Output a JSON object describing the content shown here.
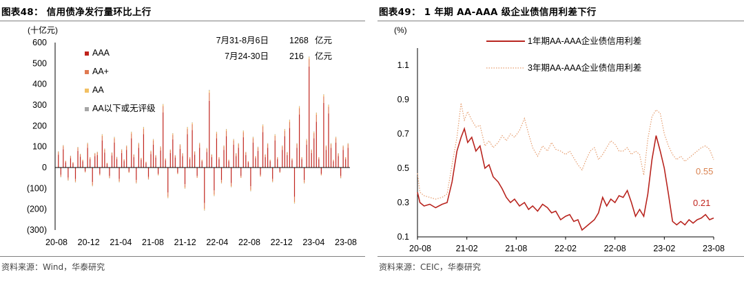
{
  "left": {
    "title": "图表48： 信用债净发行量环比上行",
    "source": "资料来源：Wind，华泰研究",
    "annotations": [
      {
        "label": "7月31-8月6日",
        "value": "1268",
        "unit": "亿元"
      },
      {
        "label": "7月24-30日",
        "value": "216",
        "unit": "亿元"
      }
    ]
  },
  "right": {
    "title": "图表49： 1 年期 AA-AAA 级企业债信用利差下行",
    "source": "资料来源：CEIC，华泰研究",
    "end_labels": {
      "series1": "0.21",
      "series2": "0.55"
    }
  },
  "colors": {
    "aaa": "#c0221b",
    "aa_plus": "#e07a52",
    "aa": "#f2c063",
    "below": "#a6a6a6",
    "line1": "#b8231d",
    "line2": "#e59a6a"
  },
  "chart_data": [
    {
      "type": "bar",
      "stacked": true,
      "ylabel": "(十亿元)",
      "ylim": [
        -300,
        600
      ],
      "yticks": [
        "(300)",
        "(200)",
        "(100)",
        "0",
        "100",
        "200",
        "300",
        "400",
        "500",
        "600"
      ],
      "xticks": [
        "20-08",
        "20-12",
        "21-04",
        "21-08",
        "21-12",
        "22-04",
        "22-08",
        "22-12",
        "23-04",
        "23-08"
      ],
      "legend": [
        "AAA",
        "AA+",
        "AA",
        "AA以下或无评级"
      ],
      "legend_position": "top-left",
      "series": [
        {
          "name": "AAA",
          "values": [
            62,
            -35,
            88,
            25,
            -48,
            45,
            20,
            -55,
            80,
            52,
            30,
            -18,
            95,
            40,
            -70,
            55,
            60,
            -30,
            130,
            72,
            18,
            -40,
            58,
            120,
            40,
            -55,
            70,
            32,
            85,
            -20,
            140,
            50,
            -60,
            95,
            38,
            160,
            22,
            -45,
            65,
            110,
            48,
            -30,
            82,
            265,
            35,
            -120,
            70,
            135,
            48,
            -25,
            90,
            55,
            -80,
            160,
            40,
            180,
            62,
            -40,
            95,
            30,
            -170,
            75,
            320,
            50,
            -110,
            140,
            40,
            -60,
            85,
            150,
            30,
            -75,
            110,
            55,
            95,
            -40,
            145,
            60,
            25,
            -90,
            120,
            45,
            80,
            -35,
            170,
            50,
            95,
            30,
            -55,
            130,
            40,
            -20,
            85,
            150,
            60,
            190,
            35,
            -140,
            95,
            255,
            40,
            -60,
            110,
            485,
            70,
            140,
            220,
            40,
            -30,
            310,
            85,
            260,
            95,
            30,
            120,
            55,
            -40,
            85,
            40,
            95
          ]
        },
        {
          "name": "AA+",
          "values": [
            12,
            -8,
            15,
            6,
            -10,
            9,
            5,
            -12,
            14,
            10,
            6,
            -4,
            18,
            8,
            -14,
            11,
            12,
            -6,
            22,
            14,
            4,
            -8,
            11,
            20,
            8,
            -11,
            13,
            6,
            16,
            -4,
            24,
            10,
            -12,
            18,
            7,
            26,
            5,
            -9,
            12,
            20,
            9,
            -6,
            15,
            30,
            7,
            -20,
            13,
            22,
            9,
            -5,
            17,
            10,
            -16,
            26,
            8,
            28,
            12,
            -8,
            18,
            6,
            -28,
            14,
            40,
            10,
            -20,
            24,
            8,
            -12,
            16,
            26,
            6,
            -14,
            20,
            10,
            17,
            -8,
            25,
            11,
            5,
            -18,
            21,
            8,
            15,
            -7,
            28,
            10,
            17,
            6,
            -11,
            22,
            8,
            -4,
            16,
            26,
            11,
            30,
            7,
            -25,
            17,
            30,
            8,
            -12,
            20,
            36,
            13,
            25,
            34,
            8,
            -6,
            32,
            16,
            32,
            17,
            6,
            21,
            10,
            -8,
            16,
            8,
            17
          ]
        },
        {
          "name": "AA",
          "values": [
            3,
            -2,
            4,
            2,
            -3,
            2,
            1,
            -3,
            4,
            3,
            2,
            -1,
            5,
            2,
            -4,
            3,
            3,
            -2,
            6,
            4,
            1,
            -2,
            3,
            5,
            2,
            -3,
            4,
            2,
            4,
            -1,
            6,
            3,
            -3,
            5,
            2,
            7,
            1,
            -2,
            3,
            5,
            2,
            -2,
            4,
            8,
            2,
            -5,
            3,
            6,
            2,
            -1,
            4,
            3,
            -4,
            7,
            2,
            7,
            3,
            -2,
            5,
            2,
            -7,
            4,
            10,
            3,
            -5,
            6,
            2,
            -3,
            4,
            7,
            2,
            -4,
            5,
            3,
            4,
            -2,
            6,
            3,
            1,
            -4,
            5,
            2,
            4,
            -2,
            7,
            3,
            4,
            2,
            -3,
            6,
            2,
            -1,
            4,
            7,
            3,
            8,
            2,
            -6,
            4,
            8,
            2,
            -3,
            5,
            9,
            3,
            6,
            8,
            2,
            -2,
            8,
            4,
            8,
            4,
            2,
            5,
            3,
            -2,
            4,
            2,
            4
          ]
        },
        {
          "name": "AA以下或无评级",
          "values": [
            1,
            -1,
            1,
            0,
            -1,
            1,
            0,
            -1,
            1,
            1,
            0,
            0,
            1,
            0,
            -1,
            1,
            1,
            0,
            2,
            1,
            0,
            -1,
            1,
            2,
            1,
            -1,
            1,
            0,
            1,
            0,
            2,
            1,
            -1,
            1,
            0,
            2,
            0,
            -1,
            1,
            2,
            1,
            0,
            1,
            2,
            0,
            -2,
            1,
            2,
            1,
            0,
            1,
            1,
            -1,
            2,
            0,
            2,
            1,
            0,
            1,
            0,
            -2,
            1,
            3,
            1,
            -2,
            2,
            0,
            -1,
            1,
            2,
            0,
            -1,
            2,
            1,
            1,
            0,
            2,
            1,
            0,
            -1,
            2,
            0,
            1,
            0,
            2,
            1,
            1,
            0,
            -1,
            2,
            0,
            0,
            1,
            2,
            1,
            2,
            0,
            -2,
            1,
            2,
            0,
            -1,
            2,
            3,
            1,
            2,
            2,
            0,
            0,
            2,
            1,
            2,
            1,
            0,
            2,
            1,
            -1,
            1,
            0,
            1
          ]
        }
      ]
    },
    {
      "type": "line",
      "ylabel": "(%)",
      "ylim": [
        0.1,
        1.2
      ],
      "yticks": [
        "0.1",
        "0.3",
        "0.5",
        "0.7",
        "0.9",
        "1.1"
      ],
      "xticks": [
        "20-08",
        "21-02",
        "21-08",
        "22-02",
        "22-08",
        "23-02",
        "23-08"
      ],
      "legend_position": "top-center",
      "series": [
        {
          "name": "1年期AA-AAA企业债信用利差",
          "x_months": [
            0,
            0.3,
            0.8,
            1.5,
            2.2,
            3,
            3.6,
            4.2,
            4.8,
            5.3,
            5.7,
            6.1,
            6.6,
            7.1,
            7.6,
            8.2,
            8.7,
            9.2,
            9.8,
            10.3,
            10.8,
            11.3,
            11.8,
            12.4,
            13,
            13.5,
            14,
            14.6,
            15.2,
            15.8,
            16.3,
            16.8,
            17.4,
            18,
            18.5,
            19,
            19.5,
            20,
            20.5,
            21,
            21.5,
            22,
            22.5,
            23,
            23.5,
            24,
            24.5,
            25,
            25.5,
            26,
            26.5,
            27,
            27.5,
            28,
            28.5,
            29,
            29.5,
            30,
            30.5,
            31,
            31.5,
            32,
            32.5,
            33,
            33.5,
            34,
            34.5,
            35,
            35.5,
            36
          ],
          "values": [
            0.36,
            0.3,
            0.28,
            0.29,
            0.27,
            0.29,
            0.3,
            0.42,
            0.6,
            0.68,
            0.73,
            0.65,
            0.68,
            0.6,
            0.63,
            0.5,
            0.52,
            0.45,
            0.42,
            0.38,
            0.33,
            0.3,
            0.32,
            0.28,
            0.3,
            0.26,
            0.28,
            0.25,
            0.29,
            0.27,
            0.24,
            0.25,
            0.2,
            0.22,
            0.23,
            0.19,
            0.2,
            0.14,
            0.16,
            0.18,
            0.2,
            0.24,
            0.33,
            0.28,
            0.32,
            0.3,
            0.34,
            0.33,
            0.37,
            0.3,
            0.22,
            0.26,
            0.22,
            0.35,
            0.55,
            0.69,
            0.6,
            0.5,
            0.35,
            0.19,
            0.17,
            0.19,
            0.17,
            0.2,
            0.18,
            0.2,
            0.21,
            0.23,
            0.2,
            0.21
          ]
        },
        {
          "name": "3年期AA-AAA企业债信用利差",
          "x_months": [
            0,
            0.3,
            0.8,
            1.5,
            2.2,
            3,
            3.6,
            4.2,
            4.8,
            5.3,
            5.7,
            6.1,
            6.6,
            7.1,
            7.6,
            8.2,
            8.7,
            9.2,
            9.8,
            10.3,
            10.8,
            11.3,
            11.8,
            12.4,
            13,
            13.5,
            14,
            14.6,
            15.2,
            15.8,
            16.3,
            16.8,
            17.4,
            18,
            18.5,
            19,
            19.5,
            20,
            20.5,
            21,
            21.5,
            22,
            22.5,
            23,
            23.5,
            24,
            24.5,
            25,
            25.5,
            26,
            26.5,
            27,
            27.5,
            28,
            28.5,
            29,
            29.5,
            30,
            30.5,
            31,
            31.5,
            32,
            32.5,
            33,
            33.5,
            34,
            34.5,
            35,
            35.5,
            36
          ],
          "values": [
            0.47,
            0.36,
            0.34,
            0.33,
            0.32,
            0.33,
            0.35,
            0.52,
            0.68,
            0.88,
            0.78,
            0.83,
            0.78,
            0.74,
            0.75,
            0.63,
            0.66,
            0.62,
            0.65,
            0.69,
            0.66,
            0.7,
            0.68,
            0.72,
            0.79,
            0.7,
            0.62,
            0.57,
            0.63,
            0.6,
            0.65,
            0.61,
            0.6,
            0.58,
            0.6,
            0.56,
            0.52,
            0.49,
            0.55,
            0.6,
            0.62,
            0.55,
            0.58,
            0.62,
            0.66,
            0.64,
            0.6,
            0.6,
            0.62,
            0.58,
            0.6,
            0.58,
            0.46,
            0.67,
            0.8,
            0.84,
            0.82,
            0.7,
            0.63,
            0.58,
            0.55,
            0.57,
            0.54,
            0.56,
            0.58,
            0.6,
            0.62,
            0.63,
            0.61,
            0.55
          ]
        }
      ]
    }
  ]
}
